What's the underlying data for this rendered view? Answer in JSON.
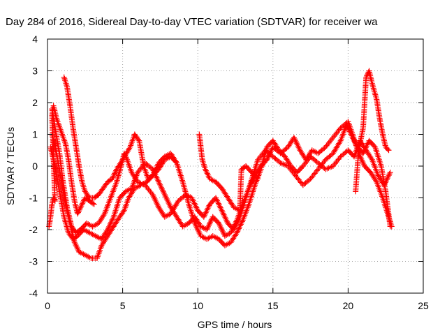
{
  "chart_data": {
    "type": "scatter",
    "title": "Day 284 of 2016, Sidereal Day-to-day VTEC variation (SDTVAR) for receiver wa",
    "xlabel": "GPS time / hours",
    "ylabel": "SDTVAR / TECUs",
    "xlim": [
      0,
      25
    ],
    "ylim": [
      -4,
      4
    ],
    "x_ticks": [
      "0",
      "5",
      "10",
      "15",
      "20",
      "25"
    ],
    "y_ticks": [
      "-4",
      "-3",
      "-2",
      "-1",
      "0",
      "1",
      "2",
      "3",
      "4"
    ],
    "grid": true,
    "marker": "+",
    "color": "#ff0000",
    "series": [
      {
        "points": [
          [
            0.3,
            1.8
          ],
          [
            0.5,
            1.2
          ],
          [
            0.8,
            0.4
          ],
          [
            1.0,
            -0.4
          ],
          [
            1.3,
            -1.3
          ],
          [
            1.6,
            -1.9
          ],
          [
            1.9,
            -2.1
          ],
          [
            2.2,
            -2.0
          ],
          [
            2.6,
            -1.8
          ],
          [
            3.0,
            -1.9
          ],
          [
            3.4,
            -1.8
          ],
          [
            3.8,
            -1.5
          ],
          [
            4.2,
            -1.0
          ],
          [
            4.6,
            -0.5
          ],
          [
            4.9,
            0.0
          ],
          [
            5.1,
            0.4
          ],
          [
            5.3,
            0.2
          ],
          [
            5.6,
            -0.2
          ],
          [
            6.0,
            -0.5
          ],
          [
            6.5,
            -0.6
          ],
          [
            7.0,
            -0.9
          ],
          [
            7.4,
            -1.3
          ],
          [
            7.8,
            -1.6
          ],
          [
            8.2,
            -1.5
          ],
          [
            8.7,
            -1.1
          ],
          [
            9.2,
            -0.9
          ],
          [
            9.6,
            -1.0
          ],
          [
            10.0,
            -1.4
          ],
          [
            10.4,
            -1.6
          ],
          [
            10.8,
            -1.2
          ],
          [
            11.2,
            -1.0
          ],
          [
            11.6,
            -1.4
          ],
          [
            12.0,
            -1.8
          ],
          [
            12.4,
            -2.0
          ],
          [
            12.8,
            -1.6
          ],
          [
            13.2,
            -1.0
          ],
          [
            13.6,
            -0.4
          ],
          [
            14.0,
            0.2
          ],
          [
            14.5,
            0.5
          ],
          [
            15.0,
            0.3
          ],
          [
            15.5,
            0.1
          ],
          [
            16.0,
            0.0
          ],
          [
            16.5,
            -0.3
          ],
          [
            17.0,
            -0.6
          ],
          [
            17.5,
            -0.4
          ],
          [
            18.0,
            -0.1
          ],
          [
            18.5,
            0.2
          ],
          [
            19.0,
            0.4
          ],
          [
            19.5,
            0.8
          ],
          [
            19.9,
            1.3
          ],
          [
            20.2,
            1.0
          ],
          [
            20.6,
            0.6
          ],
          [
            21.0,
            0.4
          ],
          [
            21.4,
            0.8
          ],
          [
            21.8,
            0.6
          ],
          [
            22.2,
            0.0
          ],
          [
            22.5,
            -0.8
          ],
          [
            22.8,
            -1.9
          ]
        ]
      },
      {
        "points": [
          [
            0.3,
            1.0
          ],
          [
            0.6,
            0.4
          ],
          [
            0.9,
            -0.4
          ],
          [
            1.2,
            -1.2
          ],
          [
            1.5,
            -1.8
          ],
          [
            1.8,
            -2.4
          ],
          [
            2.1,
            -2.7
          ],
          [
            2.5,
            -2.8
          ],
          [
            2.9,
            -2.9
          ],
          [
            3.3,
            -2.9
          ],
          [
            3.6,
            -2.5
          ],
          [
            4.0,
            -2.2
          ],
          [
            4.4,
            -1.9
          ],
          [
            4.8,
            -1.6
          ],
          [
            5.1,
            -1.4
          ],
          [
            5.4,
            -1.0
          ],
          [
            5.8,
            -0.7
          ],
          [
            6.2,
            -0.6
          ],
          [
            6.6,
            -0.5
          ],
          [
            7.0,
            -0.3
          ],
          [
            7.4,
            -0.1
          ],
          [
            7.8,
            0.2
          ],
          [
            8.2,
            0.3
          ],
          [
            8.6,
            0.1
          ],
          [
            9.0,
            -0.5
          ],
          [
            9.4,
            -1.2
          ],
          [
            9.8,
            -1.8
          ],
          [
            10.2,
            -2.2
          ],
          [
            10.6,
            -2.3
          ],
          [
            11.0,
            -2.2
          ],
          [
            11.4,
            -2.3
          ],
          [
            11.8,
            -2.5
          ],
          [
            12.2,
            -2.4
          ],
          [
            12.6,
            -2.1
          ],
          [
            13.0,
            -1.7
          ],
          [
            13.4,
            -1.2
          ],
          [
            13.8,
            -0.6
          ],
          [
            14.2,
            -0.1
          ],
          [
            14.6,
            0.6
          ],
          [
            15.0,
            0.8
          ],
          [
            15.4,
            0.5
          ],
          [
            15.8,
            0.3
          ],
          [
            16.2,
            0.0
          ],
          [
            16.6,
            -0.2
          ],
          [
            17.0,
            0.0
          ],
          [
            17.5,
            0.3
          ],
          [
            18.0,
            0.1
          ],
          [
            18.5,
            -0.1
          ],
          [
            19.0,
            0.0
          ],
          [
            19.5,
            0.3
          ],
          [
            20.0,
            0.5
          ],
          [
            20.4,
            0.3
          ],
          [
            20.8,
            0.8
          ],
          [
            21.2,
            0.5
          ],
          [
            21.6,
            0.2
          ],
          [
            22.0,
            -0.3
          ],
          [
            22.4,
            -0.6
          ],
          [
            22.8,
            -0.2
          ]
        ]
      },
      {
        "points": [
          [
            0.2,
            0.6
          ],
          [
            0.5,
            0.0
          ],
          [
            0.8,
            -0.8
          ],
          [
            1.1,
            -1.6
          ],
          [
            1.4,
            -2.1
          ],
          [
            1.7,
            -2.3
          ],
          [
            2.0,
            -2.2
          ],
          [
            2.4,
            -2.0
          ],
          [
            2.8,
            -2.1
          ],
          [
            3.2,
            -2.2
          ],
          [
            3.6,
            -2.3
          ],
          [
            4.0,
            -2.0
          ],
          [
            4.4,
            -1.6
          ],
          [
            4.8,
            -1.0
          ],
          [
            5.2,
            -0.8
          ],
          [
            5.6,
            -0.7
          ],
          [
            6.0,
            -0.2
          ],
          [
            6.5,
            0.1
          ],
          [
            7.0,
            -0.1
          ],
          [
            7.4,
            -0.5
          ],
          [
            7.8,
            -0.9
          ],
          [
            8.2,
            -1.3
          ],
          [
            8.6,
            -1.6
          ],
          [
            9.0,
            -1.9
          ],
          [
            9.4,
            -1.8
          ],
          [
            9.8,
            -1.6
          ],
          [
            10.2,
            -1.9
          ],
          [
            10.6,
            -2.0
          ],
          [
            11.0,
            -1.6
          ],
          [
            11.4,
            -1.8
          ],
          [
            11.8,
            -2.2
          ],
          [
            12.2,
            -2.1
          ],
          [
            12.6,
            -1.7
          ],
          [
            13.0,
            -1.2
          ],
          [
            13.4,
            -0.7
          ],
          [
            13.8,
            -0.3
          ],
          [
            14.2,
            0.0
          ],
          [
            14.6,
            0.2
          ],
          [
            15.0,
            0.6
          ],
          [
            15.5,
            0.4
          ],
          [
            16.0,
            0.6
          ],
          [
            16.4,
            0.9
          ],
          [
            16.8,
            0.5
          ],
          [
            17.2,
            0.2
          ],
          [
            17.6,
            0.5
          ],
          [
            18.0,
            0.4
          ],
          [
            18.5,
            0.6
          ],
          [
            19.0,
            0.9
          ],
          [
            19.5,
            1.2
          ],
          [
            20.0,
            1.4
          ],
          [
            20.3,
            1.0
          ],
          [
            20.7,
            0.4
          ],
          [
            21.1,
            0.0
          ],
          [
            21.5,
            -0.2
          ],
          [
            21.9,
            -0.5
          ],
          [
            22.3,
            -1.0
          ],
          [
            22.7,
            -1.6
          ],
          [
            22.9,
            -1.9
          ]
        ]
      },
      {
        "points": [
          [
            1.1,
            2.8
          ],
          [
            1.3,
            2.5
          ],
          [
            1.5,
            1.9
          ],
          [
            1.7,
            1.2
          ],
          [
            1.9,
            0.6
          ],
          [
            2.1,
            0.0
          ],
          [
            2.3,
            -0.5
          ],
          [
            2.5,
            -0.8
          ],
          [
            2.8,
            -1.0
          ],
          [
            3.1,
            -1.0
          ],
          [
            3.4,
            -0.9
          ],
          [
            3.7,
            -0.7
          ],
          [
            4.0,
            -0.5
          ],
          [
            4.3,
            -0.4
          ],
          [
            4.6,
            -0.1
          ],
          [
            5.0,
            0.2
          ],
          [
            5.5,
            0.6
          ],
          [
            5.8,
            1.0
          ],
          [
            6.1,
            0.8
          ],
          [
            6.4,
            0.0
          ],
          [
            6.7,
            -0.4
          ],
          [
            7.0,
            -0.3
          ],
          [
            7.4,
            0.1
          ],
          [
            7.8,
            0.3
          ],
          [
            8.2,
            0.4
          ],
          [
            8.6,
            0.1
          ]
        ]
      },
      {
        "points": [
          [
            20.5,
            -0.8
          ],
          [
            20.7,
            0.5
          ],
          [
            21.0,
            1.2
          ],
          [
            21.2,
            2.8
          ],
          [
            21.4,
            3.0
          ],
          [
            21.6,
            2.6
          ],
          [
            21.9,
            2.1
          ],
          [
            22.1,
            1.5
          ],
          [
            22.3,
            1.0
          ],
          [
            22.5,
            0.6
          ],
          [
            22.7,
            0.5
          ]
        ]
      },
      {
        "points": [
          [
            10.1,
            1.0
          ],
          [
            10.2,
            0.6
          ],
          [
            10.3,
            0.2
          ],
          [
            10.5,
            -0.1
          ],
          [
            10.8,
            -0.4
          ],
          [
            11.2,
            -0.5
          ],
          [
            11.6,
            -0.7
          ],
          [
            12.0,
            -1.0
          ],
          [
            12.4,
            -1.3
          ],
          [
            12.8,
            -1.4
          ],
          [
            12.9,
            -0.1
          ],
          [
            13.2,
            0.0
          ],
          [
            13.6,
            -0.2
          ],
          [
            14.0,
            -0.4
          ]
        ]
      },
      {
        "points": [
          [
            0.1,
            -1.9
          ],
          [
            0.2,
            -1.6
          ],
          [
            0.3,
            -1.2
          ],
          [
            0.4,
            -1.0
          ],
          [
            0.5,
            -1.1
          ],
          [
            0.3,
            1.6
          ],
          [
            0.4,
            1.9
          ],
          [
            0.6,
            1.5
          ],
          [
            0.9,
            1.1
          ],
          [
            1.2,
            0.7
          ],
          [
            1.4,
            0.2
          ],
          [
            1.6,
            -0.5
          ],
          [
            1.8,
            -1.1
          ],
          [
            2.0,
            -1.5
          ],
          [
            2.2,
            -1.3
          ],
          [
            2.5,
            -1.0
          ],
          [
            2.8,
            -1.1
          ],
          [
            3.1,
            -1.2
          ]
        ]
      }
    ]
  }
}
